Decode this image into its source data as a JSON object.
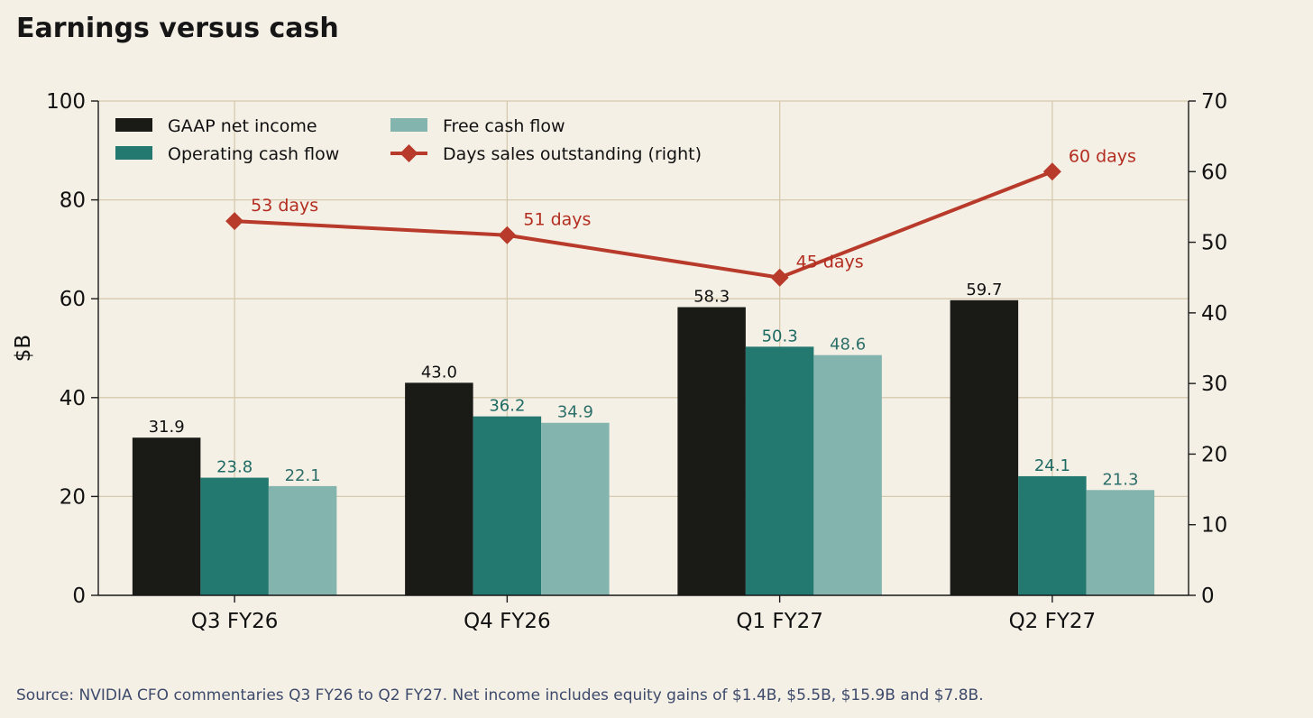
{
  "title": "Earnings versus cash",
  "source": "Source: NVIDIA CFO commentaries Q3 FY26 to Q2 FY27. Net income includes equity gains of $1.4B, $5.5B, $15.9B and $7.8B.",
  "chart_data": {
    "type": "bar",
    "title": "Earnings versus cash",
    "xlabel": "",
    "ylabel": "$B",
    "ylim": [
      0,
      100
    ],
    "yticks": [
      0,
      20,
      40,
      60,
      80,
      100
    ],
    "y2lim": [
      0,
      70
    ],
    "y2ticks": [
      0,
      10,
      20,
      30,
      40,
      50,
      60,
      70
    ],
    "grid": true,
    "legend_position": "top-left",
    "categories": [
      "Q3 FY26",
      "Q4 FY26",
      "Q1 FY27",
      "Q2 FY27"
    ],
    "series": [
      {
        "name": "GAAP net income",
        "type": "bar",
        "axis": "left",
        "color": "#1a1a17",
        "label_color": "#111111",
        "values": [
          31.9,
          43.0,
          58.3,
          59.7
        ],
        "labels": [
          "31.9",
          "43.0",
          "58.3",
          "59.7"
        ]
      },
      {
        "name": "Operating cash flow",
        "type": "bar",
        "axis": "left",
        "color": "#237870",
        "label_color": "#1e6b64",
        "values": [
          23.8,
          36.2,
          50.3,
          24.1
        ],
        "labels": [
          "23.8",
          "36.2",
          "50.3",
          "24.1"
        ]
      },
      {
        "name": "Free cash flow",
        "type": "bar",
        "axis": "left",
        "color": "#83b5ae",
        "label_color": "#2c6f69",
        "values": [
          22.1,
          34.9,
          48.6,
          21.3
        ],
        "labels": [
          "22.1",
          "34.9",
          "48.6",
          "21.3"
        ]
      },
      {
        "name": "Days sales outstanding (right)",
        "type": "line",
        "axis": "right",
        "color": "#b83a2a",
        "label_color": "#b32d20",
        "values": [
          53,
          51,
          45,
          60
        ],
        "labels": [
          "53 days",
          "51 days",
          "45 days",
          "60 days"
        ]
      }
    ]
  }
}
